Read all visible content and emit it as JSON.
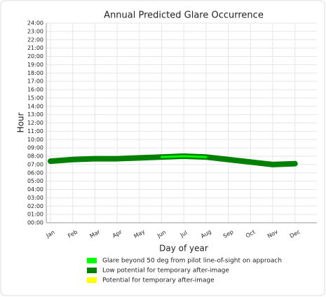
{
  "chart_data": {
    "type": "line",
    "title": "Annual Predicted Glare Occurrence",
    "x_label": "Day of year",
    "y_label": "Hour",
    "categories": [
      "Jan",
      "Feb",
      "Mar",
      "Apr",
      "May",
      "Jun",
      "Jul",
      "Aug",
      "Sep",
      "Oct",
      "Nov",
      "Dec"
    ],
    "series": [
      {
        "name": "Glare beyond 50 deg from pilot line-of-sight on approach",
        "color": "#00ff00",
        "values": [
          null,
          null,
          null,
          null,
          null,
          7.9,
          8.0,
          7.9,
          null,
          null,
          null,
          null
        ]
      },
      {
        "name": "Low potential for temporary after-image",
        "color": "#008000",
        "values": [
          7.4,
          7.6,
          7.7,
          7.7,
          7.8,
          7.9,
          8.0,
          7.9,
          7.6,
          7.3,
          7.0,
          7.1
        ]
      },
      {
        "name": "Potential for temporary after-image",
        "color": "#ffff00",
        "values": [
          null,
          null,
          null,
          null,
          null,
          null,
          null,
          null,
          null,
          null,
          null,
          null
        ]
      }
    ],
    "ylim": [
      0,
      24
    ],
    "yticks": [
      {
        "value": 0,
        "label": "00:00"
      },
      {
        "value": 1,
        "label": "01:00"
      },
      {
        "value": 2,
        "label": "02:00"
      },
      {
        "value": 3,
        "label": "03:00"
      },
      {
        "value": 4,
        "label": "04:00"
      },
      {
        "value": 5,
        "label": "05:00"
      },
      {
        "value": 6,
        "label": "06:00"
      },
      {
        "value": 7,
        "label": "07:00"
      },
      {
        "value": 8,
        "label": "08:00"
      },
      {
        "value": 9,
        "label": "09:00"
      },
      {
        "value": 10,
        "label": "10:00"
      },
      {
        "value": 11,
        "label": "11:00"
      },
      {
        "value": 12,
        "label": "12:00"
      },
      {
        "value": 13,
        "label": "13:00"
      },
      {
        "value": 14,
        "label": "14:00"
      },
      {
        "value": 15,
        "label": "15:00"
      },
      {
        "value": 16,
        "label": "16:00"
      },
      {
        "value": 17,
        "label": "17:00"
      },
      {
        "value": 18,
        "label": "18:00"
      },
      {
        "value": 19,
        "label": "19:00"
      },
      {
        "value": 20,
        "label": "20:00"
      },
      {
        "value": 21,
        "label": "21:00"
      },
      {
        "value": 22,
        "label": "22:00"
      },
      {
        "value": 23,
        "label": "23:00"
      },
      {
        "value": 24,
        "label": "24:00"
      }
    ],
    "grid": true
  }
}
